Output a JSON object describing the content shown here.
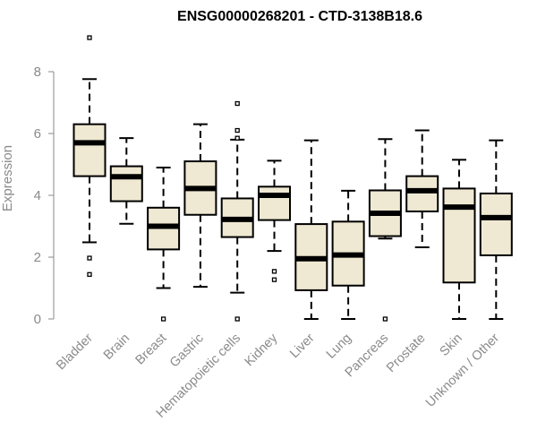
{
  "chart_data": {
    "type": "box",
    "title": "ENSG00000268201 - CTD-3138B18.6",
    "ylabel": "Expression",
    "xlabel": "",
    "ylim": [
      0,
      9.3
    ],
    "yticks": [
      0,
      2,
      4,
      6,
      8
    ],
    "box_fill": "#efe8d2",
    "categories": [
      "Bladder",
      "Brain",
      "Breast",
      "Gastric",
      "Hematopoietic cells",
      "Kidney",
      "Liver",
      "Lung",
      "Pancreas",
      "Prostate",
      "Skin",
      "Unknown / Other"
    ],
    "boxes": [
      {
        "whisker_low": 2.48,
        "q1": 4.62,
        "median": 5.7,
        "q3": 6.3,
        "whisker_high": 7.76,
        "outliers": [
          9.1,
          1.97,
          1.44
        ]
      },
      {
        "whisker_low": 3.08,
        "q1": 3.81,
        "median": 4.6,
        "q3": 4.94,
        "whisker_high": 5.85,
        "outliers": []
      },
      {
        "whisker_low": 1.0,
        "q1": 2.25,
        "median": 3.0,
        "q3": 3.6,
        "whisker_high": 4.9,
        "outliers": [
          0.0
        ]
      },
      {
        "whisker_low": 1.04,
        "q1": 3.37,
        "median": 4.22,
        "q3": 5.1,
        "whisker_high": 6.3,
        "outliers": []
      },
      {
        "whisker_low": 0.85,
        "q1": 2.65,
        "median": 3.22,
        "q3": 3.9,
        "whisker_high": 5.8,
        "outliers": [
          6.97,
          6.1,
          5.85,
          0.0
        ]
      },
      {
        "whisker_low": 2.2,
        "q1": 3.2,
        "median": 4.0,
        "q3": 4.28,
        "whisker_high": 5.12,
        "outliers": [
          1.54,
          1.27
        ]
      },
      {
        "whisker_low": 0.0,
        "q1": 0.93,
        "median": 1.95,
        "q3": 3.07,
        "whisker_high": 5.78,
        "outliers": []
      },
      {
        "whisker_low": 0.0,
        "q1": 1.08,
        "median": 2.07,
        "q3": 3.15,
        "whisker_high": 4.15,
        "outliers": []
      },
      {
        "whisker_low": 2.6,
        "q1": 2.68,
        "median": 3.42,
        "q3": 4.16,
        "whisker_high": 5.82,
        "outliers": [
          0.0
        ]
      },
      {
        "whisker_low": 2.32,
        "q1": 3.48,
        "median": 4.15,
        "q3": 4.62,
        "whisker_high": 6.1,
        "outliers": []
      },
      {
        "whisker_low": 0.0,
        "q1": 1.18,
        "median": 3.62,
        "q3": 4.22,
        "whisker_high": 5.15,
        "outliers": []
      },
      {
        "whisker_low": 0.0,
        "q1": 2.06,
        "median": 3.28,
        "q3": 4.06,
        "whisker_high": 5.78,
        "outliers": []
      }
    ]
  }
}
